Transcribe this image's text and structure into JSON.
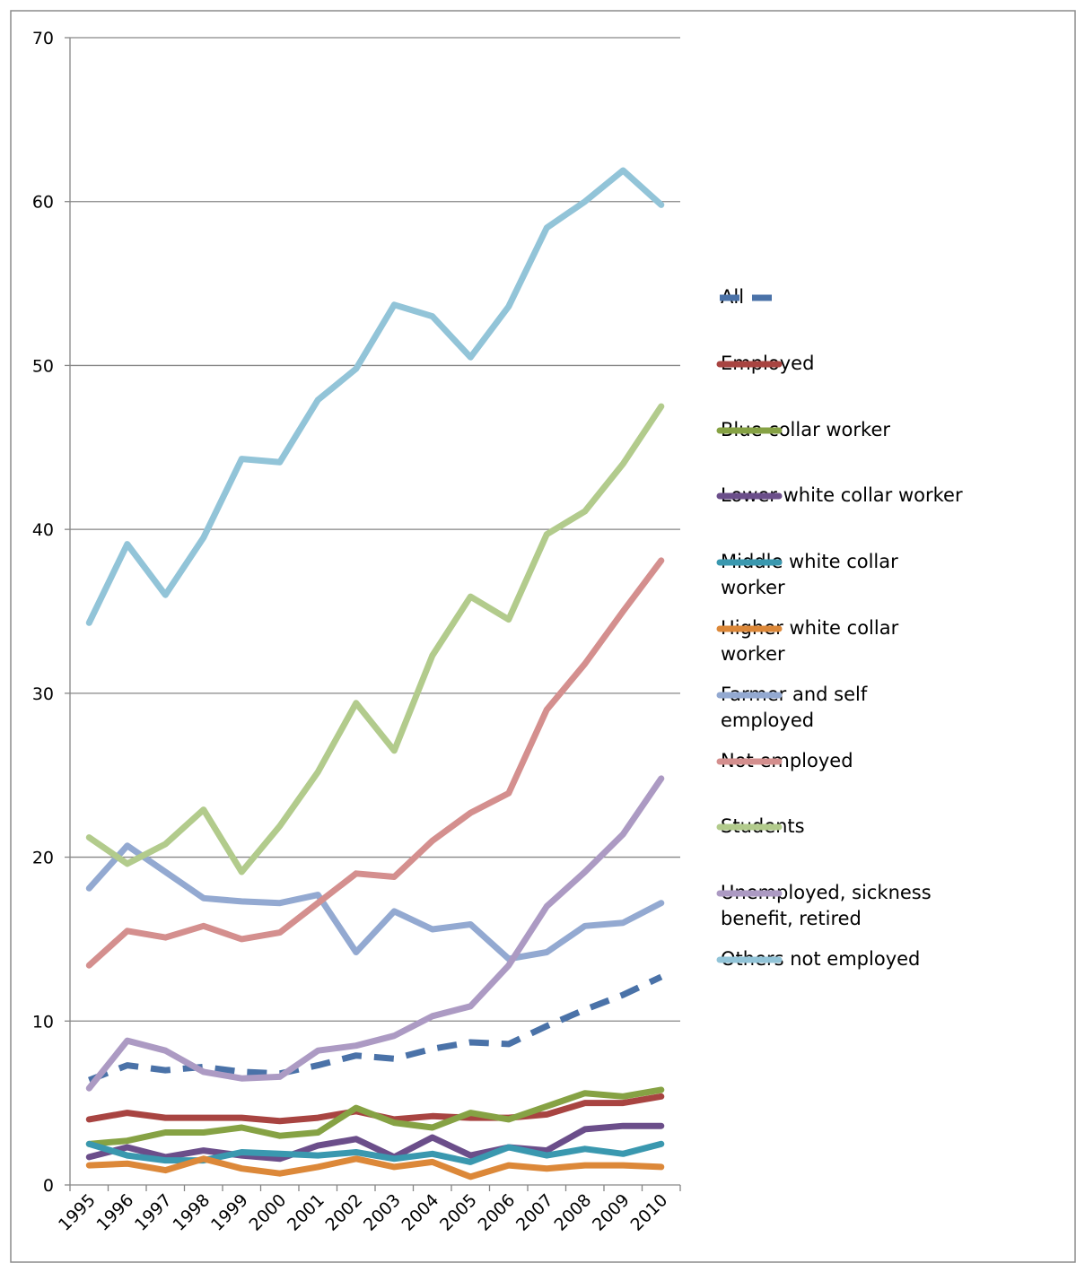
{
  "chart_data": {
    "type": "line",
    "categories": [
      "1995",
      "1996",
      "1997",
      "1998",
      "1999",
      "2000",
      "2001",
      "2002",
      "2003",
      "2004",
      "2005",
      "2006",
      "2007",
      "2008",
      "2009",
      "2010"
    ],
    "ylim": [
      0,
      70
    ],
    "yticks": [
      0,
      10,
      20,
      30,
      40,
      50,
      60,
      70
    ],
    "grid": true,
    "legend": "right",
    "series": [
      {
        "name": "All",
        "color": "#4a72a8",
        "line_style": "dashed",
        "values": [
          6.4,
          7.3,
          7.0,
          7.2,
          6.9,
          6.8,
          7.3,
          7.9,
          7.7,
          8.3,
          8.7,
          8.6,
          9.7,
          10.7,
          11.6,
          12.7
        ]
      },
      {
        "name": "Employed",
        "color": "#a84441",
        "values": [
          4.0,
          4.4,
          4.1,
          4.1,
          4.1,
          3.9,
          4.1,
          4.5,
          4.0,
          4.2,
          4.1,
          4.1,
          4.3,
          5.0,
          5.0,
          5.4
        ]
      },
      {
        "name": "Blue collar worker",
        "color": "#86a244",
        "values": [
          2.5,
          2.7,
          3.2,
          3.2,
          3.5,
          3.0,
          3.2,
          4.7,
          3.8,
          3.5,
          4.4,
          4.0,
          4.8,
          5.6,
          5.4,
          5.8
        ]
      },
      {
        "name": "Lower white collar worker",
        "color": "#6b4e8a",
        "values": [
          1.7,
          2.3,
          1.7,
          2.1,
          1.8,
          1.6,
          2.4,
          2.8,
          1.7,
          2.9,
          1.8,
          2.3,
          2.1,
          3.4,
          3.6,
          3.6
        ]
      },
      {
        "name": "Middle white collar worker",
        "color": "#3a98af",
        "values": [
          2.5,
          1.8,
          1.5,
          1.5,
          2.0,
          1.9,
          1.8,
          2.0,
          1.6,
          1.9,
          1.4,
          2.3,
          1.8,
          2.2,
          1.9,
          2.5
        ]
      },
      {
        "name": "Higher white collar worker",
        "color": "#dc8839",
        "values": [
          1.2,
          1.3,
          0.9,
          1.6,
          1.0,
          0.7,
          1.1,
          1.6,
          1.1,
          1.4,
          0.5,
          1.2,
          1.0,
          1.2,
          1.2,
          1.1
        ]
      },
      {
        "name": "Farmer and self employed",
        "color": "#93a9d1",
        "values": [
          18.1,
          20.7,
          19.1,
          17.5,
          17.3,
          17.2,
          17.7,
          14.2,
          16.7,
          15.6,
          15.9,
          13.8,
          14.2,
          15.8,
          16.0,
          17.2
        ]
      },
      {
        "name": "Not employed",
        "color": "#d48f8e",
        "values": [
          13.4,
          15.5,
          15.1,
          15.8,
          15.0,
          15.4,
          17.2,
          19.0,
          18.8,
          21.0,
          22.7,
          23.9,
          29.0,
          31.8,
          35.0,
          38.1
        ]
      },
      {
        "name": "Students",
        "color": "#b2cb8c",
        "values": [
          21.2,
          19.6,
          20.8,
          22.9,
          19.1,
          21.9,
          25.2,
          29.4,
          26.5,
          32.3,
          35.9,
          34.5,
          39.7,
          41.1,
          44.0,
          47.5
        ]
      },
      {
        "name": "Unemployed, sickness benefit, retired",
        "color": "#ac9ac3",
        "values": [
          5.9,
          8.8,
          8.2,
          6.9,
          6.5,
          6.6,
          8.2,
          8.5,
          9.1,
          10.3,
          10.9,
          13.4,
          17.0,
          19.1,
          21.4,
          24.8
        ]
      },
      {
        "name": "Others not employed",
        "color": "#92c4d8",
        "values": [
          34.3,
          39.1,
          36.0,
          39.5,
          44.3,
          44.1,
          47.9,
          49.8,
          53.7,
          53.0,
          50.5,
          53.6,
          58.4,
          60.0,
          61.9,
          59.8
        ]
      }
    ]
  }
}
